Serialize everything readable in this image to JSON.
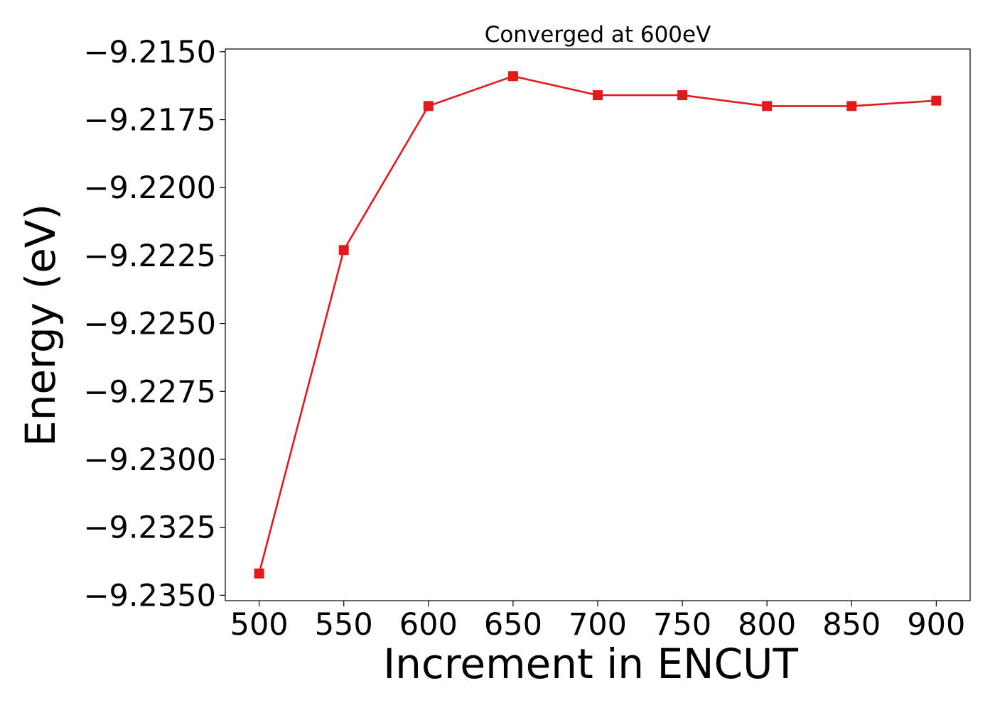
{
  "chart_data": {
    "type": "line",
    "title": "Converged at 600eV",
    "xlabel": "Increment in ENCUT",
    "ylabel": "Energy (eV)",
    "x": [
      500,
      550,
      600,
      650,
      700,
      750,
      800,
      850,
      900
    ],
    "series": [
      {
        "values": [
          -9.2342,
          -9.2223,
          -9.217,
          -9.2159,
          -9.2166,
          -9.2166,
          -9.217,
          -9.217,
          -9.2168
        ],
        "color": "#e31a1c",
        "marker": "square"
      }
    ],
    "xticks": [
      500,
      550,
      600,
      650,
      700,
      750,
      800,
      850,
      900
    ],
    "xtick_labels": [
      "500",
      "550",
      "600",
      "650",
      "700",
      "750",
      "800",
      "850",
      "900"
    ],
    "yticks": [
      -9.215,
      -9.2175,
      -9.22,
      -9.2225,
      -9.225,
      -9.2275,
      -9.23,
      -9.2325,
      -9.235
    ],
    "ytick_labels": [
      "−9.2150",
      "−9.2175",
      "−9.2200",
      "−9.2225",
      "−9.2250",
      "−9.2275",
      "−9.2300",
      "−9.2325",
      "−9.2350"
    ],
    "xlim": [
      480,
      920
    ],
    "ylim": [
      -9.2352,
      -9.2149
    ],
    "grid": false,
    "legend": "none"
  }
}
